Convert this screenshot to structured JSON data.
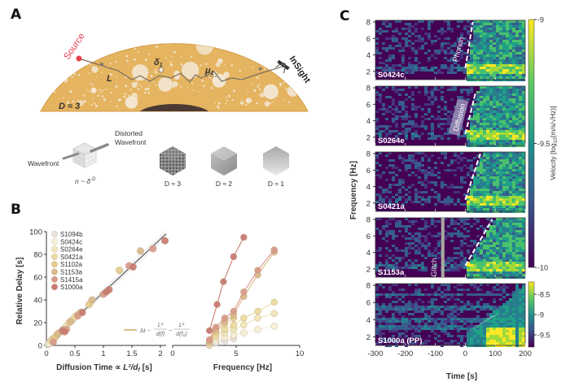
{
  "panels": {
    "A": {
      "letter": "A",
      "labels": {
        "source": "Source",
        "insight": "InSight",
        "path_length": "L",
        "delta": "δ",
        "delta_sub": "1",
        "mu": "μ",
        "mu_sub": "1",
        "dimension": "D ≈ 3",
        "wavefront": "Wavefront",
        "distorted_line1": "Distorted",
        "distorted_line2": "Wavefront",
        "scaling": "n ~ δ",
        "scaling_exp": "-D"
      },
      "cubes": [
        {
          "label": "D ≈ 3"
        },
        {
          "label": "D ≈ 2"
        },
        {
          "label": "D ≈ 1"
        }
      ],
      "colors": {
        "mantle": "#e5b460",
        "core": "#4a3a33",
        "source": "#e8404c",
        "scatterer": "#f3e7d3"
      }
    },
    "B": {
      "letter": "B",
      "legend_equation": "Δt ~ L²/d(f) − L²/d(f₀)",
      "chart_data": [
        {
          "type": "scatter",
          "title": "",
          "xlabel": "Diffusion Time ∝ L²/d_f [s]",
          "xlabel_main": "Diffusion Time ∝ ",
          "xlabel_math": "L²/d",
          "xlabel_sub": "f",
          "xlabel_unit": " [s]",
          "ylabel": "Relative Delay [s]",
          "xlim": [
            0,
            2.1
          ],
          "ylim": [
            0,
            100
          ],
          "xticks": [
            "0",
            "0.5",
            "1",
            "1.5",
            "2"
          ],
          "xtick_values": [
            0,
            0.5,
            1,
            1.5,
            2
          ],
          "yticks": [
            "0",
            "20",
            "40",
            "60",
            "80",
            "100"
          ],
          "ytick_values": [
            0,
            20,
            40,
            60,
            80,
            100
          ],
          "legend_position": "top-left",
          "fit_line": {
            "x": [
              0,
              2.1
            ],
            "y": [
              0,
              98
            ]
          },
          "series": [
            {
              "name": "S1094b",
              "color": "#e6e3dc",
              "points": [
                [
                  0.03,
                  1
                ],
                [
                  0.06,
                  2
                ],
                [
                  0.1,
                  3
                ]
              ]
            },
            {
              "name": "S0424c",
              "color": "#f5f0d6",
              "points": [
                [
                  0.05,
                  2
                ],
                [
                  0.12,
                  6
                ],
                [
                  0.2,
                  10
                ],
                [
                  0.3,
                  14
                ]
              ]
            },
            {
              "name": "S0264e",
              "color": "#f0e6b8",
              "points": [
                [
                  0.08,
                  4
                ],
                [
                  0.18,
                  9
                ],
                [
                  0.35,
                  17
                ],
                [
                  0.45,
                  22
                ]
              ]
            },
            {
              "name": "S0421a",
              "color": "#eadca0",
              "points": [
                [
                  0.1,
                  5
                ],
                [
                  0.22,
                  11
                ],
                [
                  0.4,
                  20
                ],
                [
                  0.5,
                  25
                ]
              ]
            },
            {
              "name": "S1102a",
              "color": "#e3cc8c",
              "points": [
                [
                  0.15,
                  7
                ],
                [
                  0.3,
                  14
                ],
                [
                  0.55,
                  27
                ],
                [
                  0.75,
                  36
                ],
                [
                  1.28,
                  66
                ]
              ]
            },
            {
              "name": "S1153a",
              "color": "#dbb98a",
              "points": [
                [
                  0.2,
                  10
                ],
                [
                  0.42,
                  21
                ],
                [
                  0.6,
                  29
                ],
                [
                  0.8,
                  40
                ],
                [
                  1.65,
                  83
                ]
              ]
            },
            {
              "name": "S1415a",
              "color": "#d99a8a",
              "points": [
                [
                  0.12,
                  3
                ],
                [
                  0.35,
                  14
                ],
                [
                  0.55,
                  26
                ],
                [
                  1.0,
                  45
                ],
                [
                  1.45,
                  70
                ],
                [
                  1.87,
                  85
                ]
              ]
            },
            {
              "name": "S1000a",
              "color": "#c87b70",
              "points": [
                [
                  0.28,
                  13
                ],
                [
                  0.32,
                  12
                ],
                [
                  0.63,
                  29
                ],
                [
                  1.05,
                  47
                ],
                [
                  1.1,
                  49
                ],
                [
                  1.52,
                  69
                ],
                [
                  2.08,
                  92
                ]
              ]
            }
          ]
        },
        {
          "type": "line",
          "title": "",
          "xlabel": "Frequency [Hz]",
          "ylabel": "",
          "xlim": [
            0,
            10
          ],
          "ylim": [
            0,
            100
          ],
          "xticks": [
            "0",
            "5",
            "10"
          ],
          "xtick_values": [
            0,
            5,
            10
          ],
          "series": [
            {
              "name": "S1000a",
              "color": "#c87b70",
              "x": [
                2.9,
                3.5,
                4.0,
                4.8,
                5.6
              ],
              "y": [
                13,
                36,
                56,
                78,
                95
              ]
            },
            {
              "name": "S1415a",
              "color": "#d99a8a",
              "x": [
                2.9,
                3.4,
                4.1,
                4.8,
                5.6,
                6.7,
                8.0
              ],
              "y": [
                5,
                16,
                24,
                30,
                47,
                66,
                84
              ]
            },
            {
              "name": "S1153a",
              "color": "#dbb98a",
              "x": [
                2.9,
                3.4,
                4.1,
                4.8,
                5.6,
                6.7,
                8.0
              ],
              "y": [
                4,
                14,
                21,
                27,
                43,
                62,
                82
              ]
            },
            {
              "name": "S1102a",
              "color": "#e3cc8c",
              "x": [
                2.9,
                3.4,
                4.1,
                4.8
              ],
              "y": [
                3,
                12,
                19,
                24
              ]
            },
            {
              "name": "S0421a",
              "color": "#eadca0",
              "x": [
                2.9,
                3.4,
                4.1,
                4.8,
                5.6,
                6.7,
                8.0
              ],
              "y": [
                2,
                9,
                14,
                18,
                24,
                30,
                38
              ]
            },
            {
              "name": "S0264e",
              "color": "#f0e6b8",
              "x": [
                2.9,
                3.4,
                4.1,
                4.8,
                5.6,
                6.7,
                8.0
              ],
              "y": [
                1,
                7,
                11,
                14,
                18,
                24,
                28
              ]
            },
            {
              "name": "S0424c",
              "color": "#f5f0d6",
              "x": [
                2.9,
                3.4,
                4.1,
                4.8,
                5.6,
                6.7,
                8.0
              ],
              "y": [
                0,
                4,
                7,
                9,
                11,
                14,
                17
              ]
            },
            {
              "name": "S1094b",
              "color": "#e6e3dc",
              "x": [
                2.9,
                3.4,
                4.1,
                4.8
              ],
              "y": [
                0,
                2,
                4,
                6
              ]
            }
          ]
        }
      ]
    },
    "C": {
      "letter": "C",
      "chart_data": {
        "type": "heatmap",
        "xlabel": "Time [s]",
        "ylabel": "Frequency [Hz]",
        "xlim": [
          -300,
          200
        ],
        "ylim": [
          1,
          8.2
        ],
        "xticks": [
          "-300",
          "-200",
          "-100",
          "0",
          "100",
          "200"
        ],
        "xtick_values": [
          -300,
          -200,
          -100,
          0,
          100,
          200
        ],
        "yticks": [
          "2",
          "4",
          "6",
          "8"
        ],
        "ytick_values": [
          2,
          4,
          6,
          8
        ],
        "subplots": [
          {
            "label": "S0424c",
            "annotation": "Phonon",
            "line": {
              "t0": 0,
              "f0": 2.4,
              "t1": 25,
              "f1": 8
            }
          },
          {
            "label": "S0264e",
            "annotation": "Diffusion",
            "line": {
              "t0": 0,
              "f0": 2.4,
              "t1": 35,
              "f1": 7.5
            }
          },
          {
            "label": "S0421a",
            "annotation": "",
            "line": {
              "t0": 0,
              "f0": 2.4,
              "t1": 50,
              "f1": 8
            }
          },
          {
            "label": "S1153a",
            "annotation": "Glitch",
            "glitch_t": -75,
            "line": {
              "t0": 0,
              "f0": 2.4,
              "t1": 90,
              "f1": 8
            }
          },
          {
            "label": "S1000a (PP)",
            "annotation": "",
            "wedge": {
              "t0": 0,
              "f0": 2.4,
              "t1": 110,
              "f1": 4.7
            }
          }
        ],
        "colorbars": [
          {
            "label": "Velocity [log10(m/s/√Hz)]",
            "label_main": "Velocity [log",
            "label_sub": "10",
            "label_rest": "(m/s/√Hz)]",
            "ticks": [
              "-9",
              "-9.5",
              "-10"
            ],
            "tick_values": [
              -9,
              -9.5,
              -10
            ],
            "range": [
              -10,
              -9
            ]
          },
          {
            "label": "",
            "ticks": [
              "-8.5",
              "-9",
              "-9.5"
            ],
            "tick_values": [
              -8.5,
              -9,
              -9.5
            ],
            "range": [
              -9.8,
              -8.2
            ]
          }
        ],
        "colormap": [
          "#440154",
          "#3b528b",
          "#21918c",
          "#5ec962",
          "#fde725"
        ]
      }
    }
  }
}
